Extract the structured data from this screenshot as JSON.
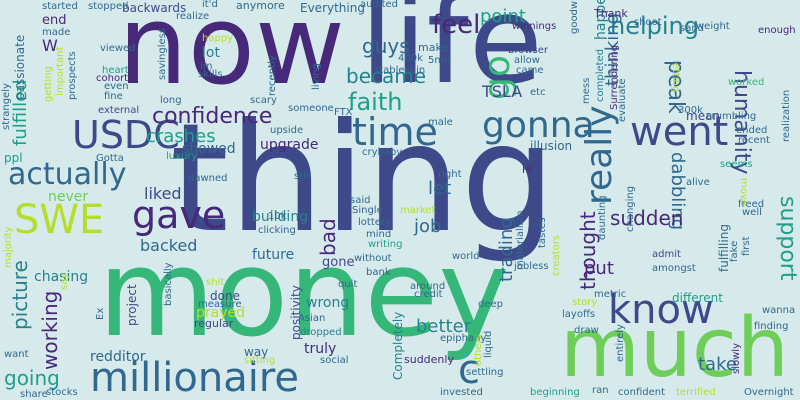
{
  "colors": {
    "background": "#d6eaeb",
    "palette": [
      "#440154",
      "#482878",
      "#3e4989",
      "#31688e",
      "#26828e",
      "#1f9e89",
      "#35b779",
      "#6ece58",
      "#b5de2b",
      "#fde725"
    ]
  },
  "words": [
    "now",
    "life",
    "thing",
    "money",
    "much",
    "millionaire",
    "actually",
    "gave",
    "SWE",
    "USDC",
    "time",
    "went",
    "gonna",
    "know",
    "really",
    "go",
    "confidence",
    "faith",
    "guys",
    "became",
    "feel",
    "point",
    "helping",
    "peak",
    "humanity",
    "support",
    "thinking",
    "happen",
    "dabbling",
    "sudden",
    "thought",
    "trading",
    "job",
    "let",
    "bad",
    "working",
    "picture",
    "going",
    "better",
    "put",
    "c",
    "take",
    "crashes",
    "liked",
    "backed",
    "building",
    "future",
    "fulfilled",
    "never",
    "chasing",
    "redditor",
    "truly",
    "wrong",
    "prayed",
    "done",
    "gone",
    "upgrade",
    "showed",
    "lot",
    "end",
    "TSLA",
    "mean",
    "illusion",
    "different",
    "fulfilling",
    "W",
    "ppl",
    "Completely",
    "Everything",
    "backwards",
    "Thank",
    "winnings",
    "goodwill",
    "browser",
    "make",
    "anymore",
    "Hi",
    "metric",
    "admit",
    "amongst",
    "luxury",
    "scary",
    "living",
    "someone",
    "positivity",
    "Asian",
    "project",
    "regular",
    "measure",
    "Ex",
    "basically",
    "quit",
    "without",
    "bank",
    "social",
    "dropped",
    "suddenly",
    "invested",
    "confident",
    "terrified",
    "beginning",
    "Overnight",
    "wanna",
    "finding",
    "slowly",
    "crumbling",
    "realization",
    "enough",
    "weight",
    "sand",
    "shoot",
    "realize",
    "stopped",
    "started",
    "passionate",
    "getting",
    "important",
    "prospects",
    "strangely",
    "made",
    "viewed",
    "cohort",
    "heart",
    "even",
    "fine",
    "long",
    "happy",
    "savingless",
    "im",
    "skills",
    "recently",
    "400k",
    "5mil",
    "stablecoin",
    "allow",
    "came",
    "etc",
    "Surrendering",
    "mess",
    "completed",
    "worked",
    "300k",
    "ended",
    "recent",
    "seems",
    "freed",
    "alive",
    "move",
    "well",
    "first",
    "fake",
    "daunting",
    "changing",
    "tastes",
    "materialism",
    "creators",
    "jobless",
    "Single",
    "lottery",
    "writing",
    "world",
    "credit",
    "around",
    "deep",
    "epiphany",
    "settling",
    "liquid",
    "others",
    "story",
    "layoffs",
    "draw",
    "entirely",
    "ran",
    "share",
    "stocks",
    "Gotta",
    "dawned",
    "shit",
    "clicking",
    "10k",
    "still",
    "crybaby",
    "male",
    "FTX",
    "upside",
    "external",
    "audited",
    "right",
    "market",
    "mind",
    "said",
    "letting",
    "evaluate",
    "want",
    "majority",
    "say",
    "sitting",
    "way",
    "it'd"
  ]
}
